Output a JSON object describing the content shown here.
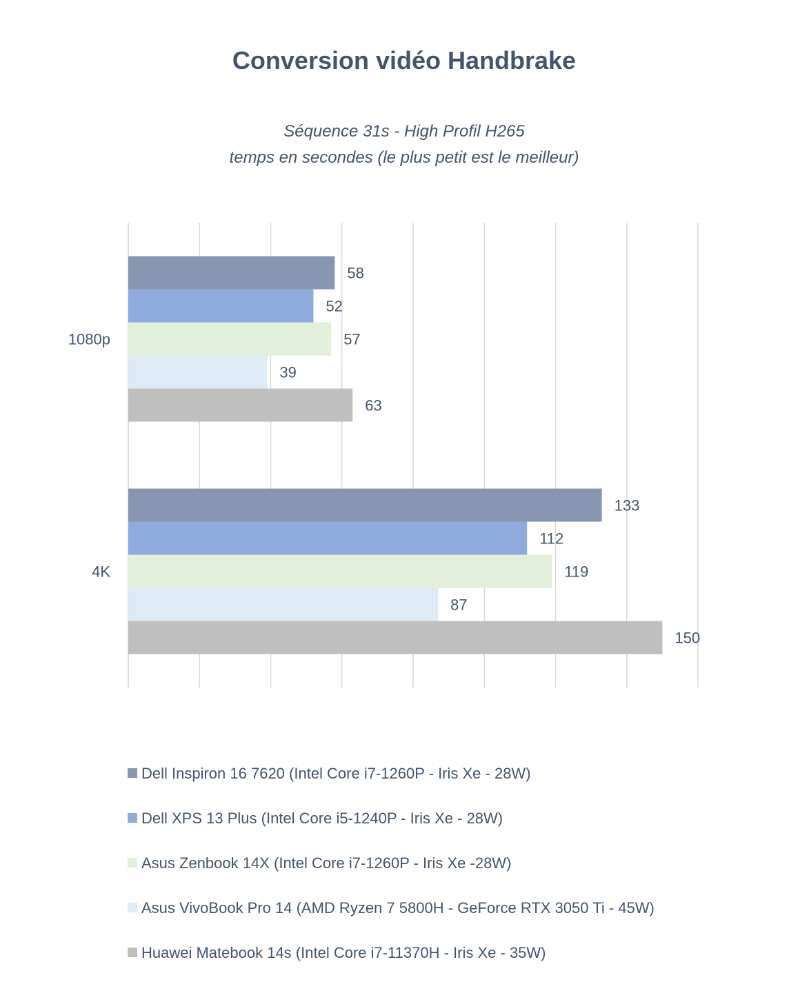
{
  "chart_data": {
    "type": "bar",
    "orientation": "horizontal",
    "title": "Conversion vidéo Handbrake",
    "subtitle": [
      "Séquence 31s - High Profil H265",
      "temps en secondes (le plus petit est le meilleur)"
    ],
    "xlabel": "",
    "ylabel": "",
    "xlim": [
      0,
      160
    ],
    "x_grid_step": 20,
    "grid": true,
    "categories": [
      "1080p",
      "4K"
    ],
    "series": [
      {
        "name": "Dell Inspiron 16 7620  (Intel Core i7-1260P - Iris Xe - 28W)",
        "color": "#8797b2",
        "values": [
          58,
          133
        ]
      },
      {
        "name": "Dell XPS 13 Plus  (Intel Core i5-1240P - Iris Xe - 28W)",
        "color": "#8faadc",
        "values": [
          52,
          112
        ]
      },
      {
        "name": "Asus Zenbook 14X  (Intel Core i7-1260P - Iris Xe -28W)",
        "color": "#e2efda",
        "values": [
          57,
          119
        ]
      },
      {
        "name": "Asus VivoBook Pro 14  (AMD Ryzen 7 5800H - GeForce RTX 3050 Ti - 45W)",
        "color": "#deebf7",
        "values": [
          39,
          87
        ]
      },
      {
        "name": "Huawei Matebook 14s  (Intel Core i7-11370H - Iris Xe - 35W)",
        "color": "#bfbfbf",
        "values": [
          63,
          150
        ]
      }
    ],
    "legend_position": "bottom"
  }
}
